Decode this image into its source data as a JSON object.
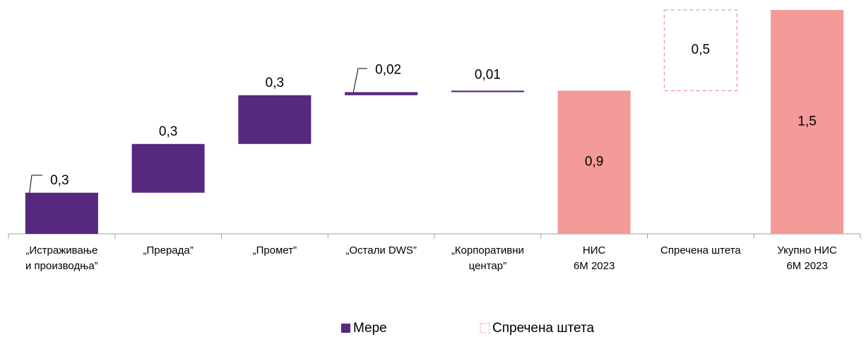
{
  "chart_data": {
    "type": "waterfall",
    "categories": [
      "„Истраживање\nи производња”",
      "„Прерада”",
      "„Промет”",
      "„Остали DWS”",
      "„Корпоративни\nцентар”",
      "НИС\n6M 2023",
      "Спречена штета",
      "Укупно НИС\n6M 2023"
    ],
    "values": [
      0.27,
      0.32,
      0.32,
      0.02,
      0.01,
      0.94,
      0.53,
      1.47
    ],
    "value_labels": [
      "0,3",
      "0,3",
      "0,3",
      "0,02",
      "0,01",
      "0,9",
      "0,5",
      "1,5"
    ],
    "bar_styles": [
      "measure",
      "measure",
      "measure",
      "measure",
      "measure",
      "total",
      "prevented",
      "total"
    ],
    "styles": {
      "measure": {
        "fill": "#57287f"
      },
      "total": {
        "fill": "#f49a99"
      },
      "prevented": {
        "stroke": "#f09a9a",
        "dashed": true
      }
    },
    "legend": [
      {
        "name": "Мере",
        "style": "measure"
      },
      {
        "name": "Спречена штета",
        "style": "prevented"
      }
    ]
  }
}
